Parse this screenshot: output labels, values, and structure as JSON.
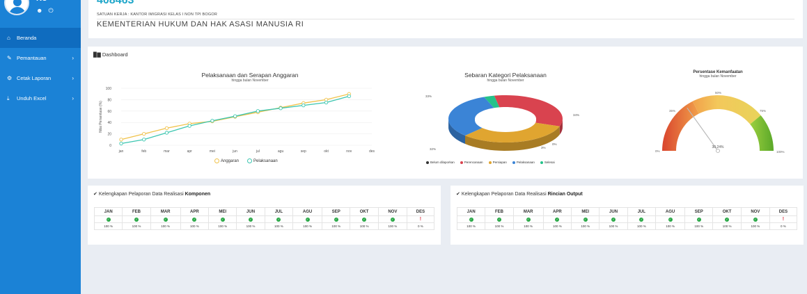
{
  "sidebar": {
    "user": {
      "name": "KU"
    },
    "items": [
      {
        "icon": "home-icon",
        "label": "Beranda",
        "active": true,
        "has_children": false
      },
      {
        "icon": "pencil-icon",
        "label": "Pemantauan",
        "active": false,
        "has_children": true
      },
      {
        "icon": "gear-icon",
        "label": "Cetak Laporan",
        "active": false,
        "has_children": true
      },
      {
        "icon": "download-icon",
        "label": "Unduh Excel",
        "active": false,
        "has_children": true
      }
    ],
    "color": "#1b82d6"
  },
  "header": {
    "number": "408463",
    "unit": "SATUAN KERJA : KANTOR IMIGRASI KELAS I NON TPI BOGOR",
    "ministry": "KEMENTERIAN HUKUM DAN HAK ASASI MANUSIA RI"
  },
  "dashboard": {
    "title": "Dashboard"
  },
  "chart_data": [
    {
      "type": "line",
      "title": "Pelaksanaan dan Serapan Anggaran",
      "subtitle": "hingga bulan November",
      "xlabel": "",
      "ylabel": "Nilai Persentase (%)",
      "ylim": [
        0,
        100
      ],
      "yticks": [
        0,
        20,
        40,
        60,
        80,
        100
      ],
      "categories": [
        "jan",
        "feb",
        "mar",
        "apr",
        "mei",
        "jun",
        "jul",
        "agu",
        "sep",
        "okt",
        "nov",
        "des"
      ],
      "series": [
        {
          "name": "Anggaran",
          "color": "#f0c24a",
          "values": [
            10,
            20,
            30,
            38,
            42,
            50,
            58,
            66,
            74,
            80,
            90,
            null
          ]
        },
        {
          "name": "Pelaksanaan",
          "color": "#3cc6b0",
          "values": [
            3,
            10,
            22,
            34,
            43,
            51,
            60,
            65,
            70,
            75,
            86,
            null
          ]
        }
      ],
      "grid": true,
      "legend": "bottom"
    },
    {
      "type": "pie",
      "title": "Sebaran Kategori Pelaksanaan",
      "subtitle": "hingga bulan November",
      "donut": true,
      "slices": [
        {
          "label": "Belum dilaporkan",
          "value": 0,
          "color": "#333333"
        },
        {
          "label": "Perencanaan",
          "value": 34,
          "color": "#d9434f"
        },
        {
          "label": "Persiapan",
          "value": 33,
          "color": "#e0a530"
        },
        {
          "label": "Pelaksanaan",
          "value": 32,
          "color": "#3b84d6"
        },
        {
          "label": "Selesai",
          "value": 3,
          "color": "#25c28a"
        }
      ],
      "value_labels": [
        "33%",
        "34%",
        "0%",
        "3%",
        "32%"
      ],
      "legend": "bottom"
    },
    {
      "type": "gauge",
      "title": "Persentase Kemanfaatan",
      "subtitle": "hingga bulan November",
      "min": 0,
      "max": 100,
      "value": 30.24,
      "value_label": "30.24%",
      "tick_labels": [
        "0%",
        "35%",
        "50%",
        "75%",
        "100%"
      ]
    }
  ],
  "tables": {
    "months": [
      "JAN",
      "FEB",
      "MAR",
      "APR",
      "MEI",
      "JUN",
      "JUL",
      "AGU",
      "SEP",
      "OKT",
      "NOV",
      "DES"
    ],
    "komponen": {
      "title_prefix": "Kelengkapan Pelaporan Data Realisasi",
      "title_bold": "Komponen",
      "status": [
        "ok",
        "ok",
        "ok",
        "ok",
        "ok",
        "ok",
        "ok",
        "ok",
        "ok",
        "ok",
        "ok",
        "warn"
      ],
      "percent": [
        "100 %",
        "100 %",
        "100 %",
        "100 %",
        "100 %",
        "100 %",
        "100 %",
        "100 %",
        "100 %",
        "100 %",
        "100 %",
        "0 %"
      ]
    },
    "rincian": {
      "title_prefix": "Kelengkapan Pelaporan Data Realisasi",
      "title_bold": "Rincian Output",
      "status": [
        "ok",
        "ok",
        "ok",
        "ok",
        "ok",
        "ok",
        "ok",
        "ok",
        "ok",
        "ok",
        "ok",
        "warn"
      ],
      "percent": [
        "100 %",
        "100 %",
        "100 %",
        "100 %",
        "100 %",
        "100 %",
        "100 %",
        "100 %",
        "100 %",
        "100 %",
        "100 %",
        "0 %"
      ]
    },
    "status_colors": {
      "ok": "#28a745",
      "warn": "#dc3545"
    }
  }
}
